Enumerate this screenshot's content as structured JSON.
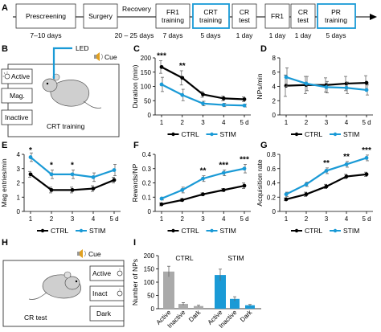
{
  "colors": {
    "ctrl": "#000000",
    "stim": "#1a9ad6",
    "bar_gray": "#aaaaaa",
    "err": "#666666"
  },
  "panel_letters": [
    "A",
    "B",
    "C",
    "D",
    "E",
    "F",
    "G",
    "H",
    "I"
  ],
  "timeline": {
    "stages": [
      {
        "label": "Prescreening",
        "highlight": false
      },
      {
        "label": "Surgery",
        "highlight": false
      },
      {
        "label": "Recovery",
        "highlight": false
      },
      {
        "label": "FR1\ntraining",
        "highlight": false
      },
      {
        "label": "CRT\ntraining",
        "highlight": true
      },
      {
        "label": "CR\ntest",
        "highlight": false
      },
      {
        "label": "FR1",
        "highlight": false
      },
      {
        "label": "CR\ntest",
        "highlight": false
      },
      {
        "label": "PR\ntraining",
        "highlight": true
      }
    ],
    "durations": [
      "7–10 days",
      "20 – 25 days",
      "7 days",
      "5 days",
      "1 day",
      "1 day",
      "1 day",
      "5 days"
    ]
  },
  "crt_schematic": {
    "led": "LED",
    "cue": "Cue",
    "levers": [
      "Active",
      "Mag.",
      "Inactive"
    ],
    "caption": "CRT training"
  },
  "cr_schematic": {
    "cue": "Cue",
    "levers": [
      "Active",
      "Inact",
      "Dark"
    ],
    "caption": "CR test"
  },
  "legend": {
    "ctrl": "CTRL",
    "stim": "STIM"
  },
  "chart_data": [
    {
      "panel": "C",
      "type": "line",
      "x": [
        1,
        2,
        3,
        4,
        5
      ],
      "x_tick_labels": [
        "1",
        "2",
        "3",
        "4",
        "5 d"
      ],
      "ylabel": "Duration (min)",
      "ylim": [
        0,
        200
      ],
      "yticks": [
        0,
        50,
        100,
        150,
        200
      ],
      "series": [
        {
          "name": "CTRL",
          "values": [
            168,
            130,
            72,
            58,
            55
          ],
          "err": [
            22,
            25,
            10,
            8,
            8
          ]
        },
        {
          "name": "STIM",
          "values": [
            107,
            70,
            40,
            35,
            33
          ],
          "err": [
            25,
            20,
            8,
            6,
            5
          ]
        }
      ],
      "annotations": [
        {
          "x": 1,
          "text": "***"
        },
        {
          "x": 2,
          "text": "**"
        }
      ],
      "legend": "bottom"
    },
    {
      "panel": "D",
      "type": "line",
      "x": [
        1,
        2,
        3,
        4,
        5
      ],
      "x_tick_labels": [
        "1",
        "2",
        "3",
        "4",
        "5 d"
      ],
      "ylabel": "NPs/min",
      "ylim": [
        0,
        8
      ],
      "yticks": [
        0,
        2,
        4,
        6,
        8
      ],
      "series": [
        {
          "name": "CTRL",
          "values": [
            4.1,
            4.2,
            4.2,
            4.4,
            4.5
          ],
          "err": [
            1.5,
            1.2,
            1.0,
            1.0,
            1.0
          ]
        },
        {
          "name": "STIM",
          "values": [
            5.3,
            4.4,
            3.9,
            3.8,
            3.5
          ],
          "err": [
            1.3,
            1.0,
            0.8,
            0.8,
            0.7
          ]
        }
      ],
      "annotations": [],
      "legend": "bottom"
    },
    {
      "panel": "E",
      "type": "line",
      "x": [
        1,
        2,
        3,
        4,
        5
      ],
      "x_tick_labels": [
        "1",
        "2",
        "3",
        "4",
        "5 d"
      ],
      "ylabel": "Mag entries/min",
      "ylim": [
        0,
        4
      ],
      "yticks": [
        0,
        1,
        2,
        3,
        4
      ],
      "series": [
        {
          "name": "CTRL",
          "values": [
            2.6,
            1.5,
            1.5,
            1.6,
            2.2
          ],
          "err": [
            0.2,
            0.2,
            0.2,
            0.2,
            0.2
          ]
        },
        {
          "name": "STIM",
          "values": [
            3.8,
            2.6,
            2.6,
            2.4,
            2.9
          ],
          "err": [
            0.3,
            0.3,
            0.3,
            0.3,
            0.4
          ]
        }
      ],
      "annotations": [
        {
          "x": 1,
          "text": "*"
        },
        {
          "x": 2,
          "text": "*"
        },
        {
          "x": 3,
          "text": "*"
        }
      ],
      "legend": "bottom"
    },
    {
      "panel": "F",
      "type": "line",
      "x": [
        1,
        2,
        3,
        4,
        5
      ],
      "x_tick_labels": [
        "1",
        "2",
        "3",
        "4",
        "5 d"
      ],
      "ylabel": "Rewards/NP",
      "ylim": [
        0,
        0.4
      ],
      "yticks": [
        0,
        0.1,
        0.2,
        0.3,
        0.4
      ],
      "series": [
        {
          "name": "CTRL",
          "values": [
            0.05,
            0.08,
            0.12,
            0.15,
            0.18
          ],
          "err": [
            0.01,
            0.01,
            0.01,
            0.01,
            0.02
          ]
        },
        {
          "name": "STIM",
          "values": [
            0.09,
            0.15,
            0.23,
            0.27,
            0.3
          ],
          "err": [
            0.01,
            0.02,
            0.02,
            0.02,
            0.03
          ]
        }
      ],
      "annotations": [
        {
          "x": 3,
          "text": "**"
        },
        {
          "x": 4,
          "text": "***"
        },
        {
          "x": 5,
          "text": "***"
        }
      ],
      "legend": "bottom"
    },
    {
      "panel": "G",
      "type": "line",
      "x": [
        1,
        2,
        3,
        4,
        5
      ],
      "x_tick_labels": [
        "1",
        "2",
        "3",
        "4",
        "5 d"
      ],
      "ylabel": "Acquisition rate",
      "ylim": [
        0,
        0.8
      ],
      "yticks": [
        0,
        0.2,
        0.4,
        0.6,
        0.8
      ],
      "series": [
        {
          "name": "CTRL",
          "values": [
            0.17,
            0.24,
            0.35,
            0.49,
            0.52
          ],
          "err": [
            0.02,
            0.03,
            0.03,
            0.03,
            0.03
          ]
        },
        {
          "name": "STIM",
          "values": [
            0.24,
            0.38,
            0.57,
            0.66,
            0.75
          ],
          "err": [
            0.03,
            0.03,
            0.04,
            0.04,
            0.04
          ]
        }
      ],
      "annotations": [
        {
          "x": 3,
          "text": "**"
        },
        {
          "x": 4,
          "text": "**"
        },
        {
          "x": 5,
          "text": "***"
        }
      ],
      "legend": "bottom"
    },
    {
      "panel": "I",
      "type": "bar",
      "ylabel": "Number of NPs",
      "ylim": [
        0,
        200
      ],
      "yticks": [
        0,
        50,
        100,
        150,
        200
      ],
      "groups": [
        {
          "name": "CTRL",
          "categories": [
            "Active",
            "Inactive",
            "Dark"
          ],
          "values": [
            140,
            18,
            10
          ],
          "err": [
            20,
            5,
            3
          ]
        },
        {
          "name": "STIM",
          "categories": [
            "Active",
            "Inactive",
            "Dark"
          ],
          "values": [
            127,
            37,
            13
          ],
          "err": [
            22,
            8,
            3
          ]
        }
      ]
    }
  ]
}
